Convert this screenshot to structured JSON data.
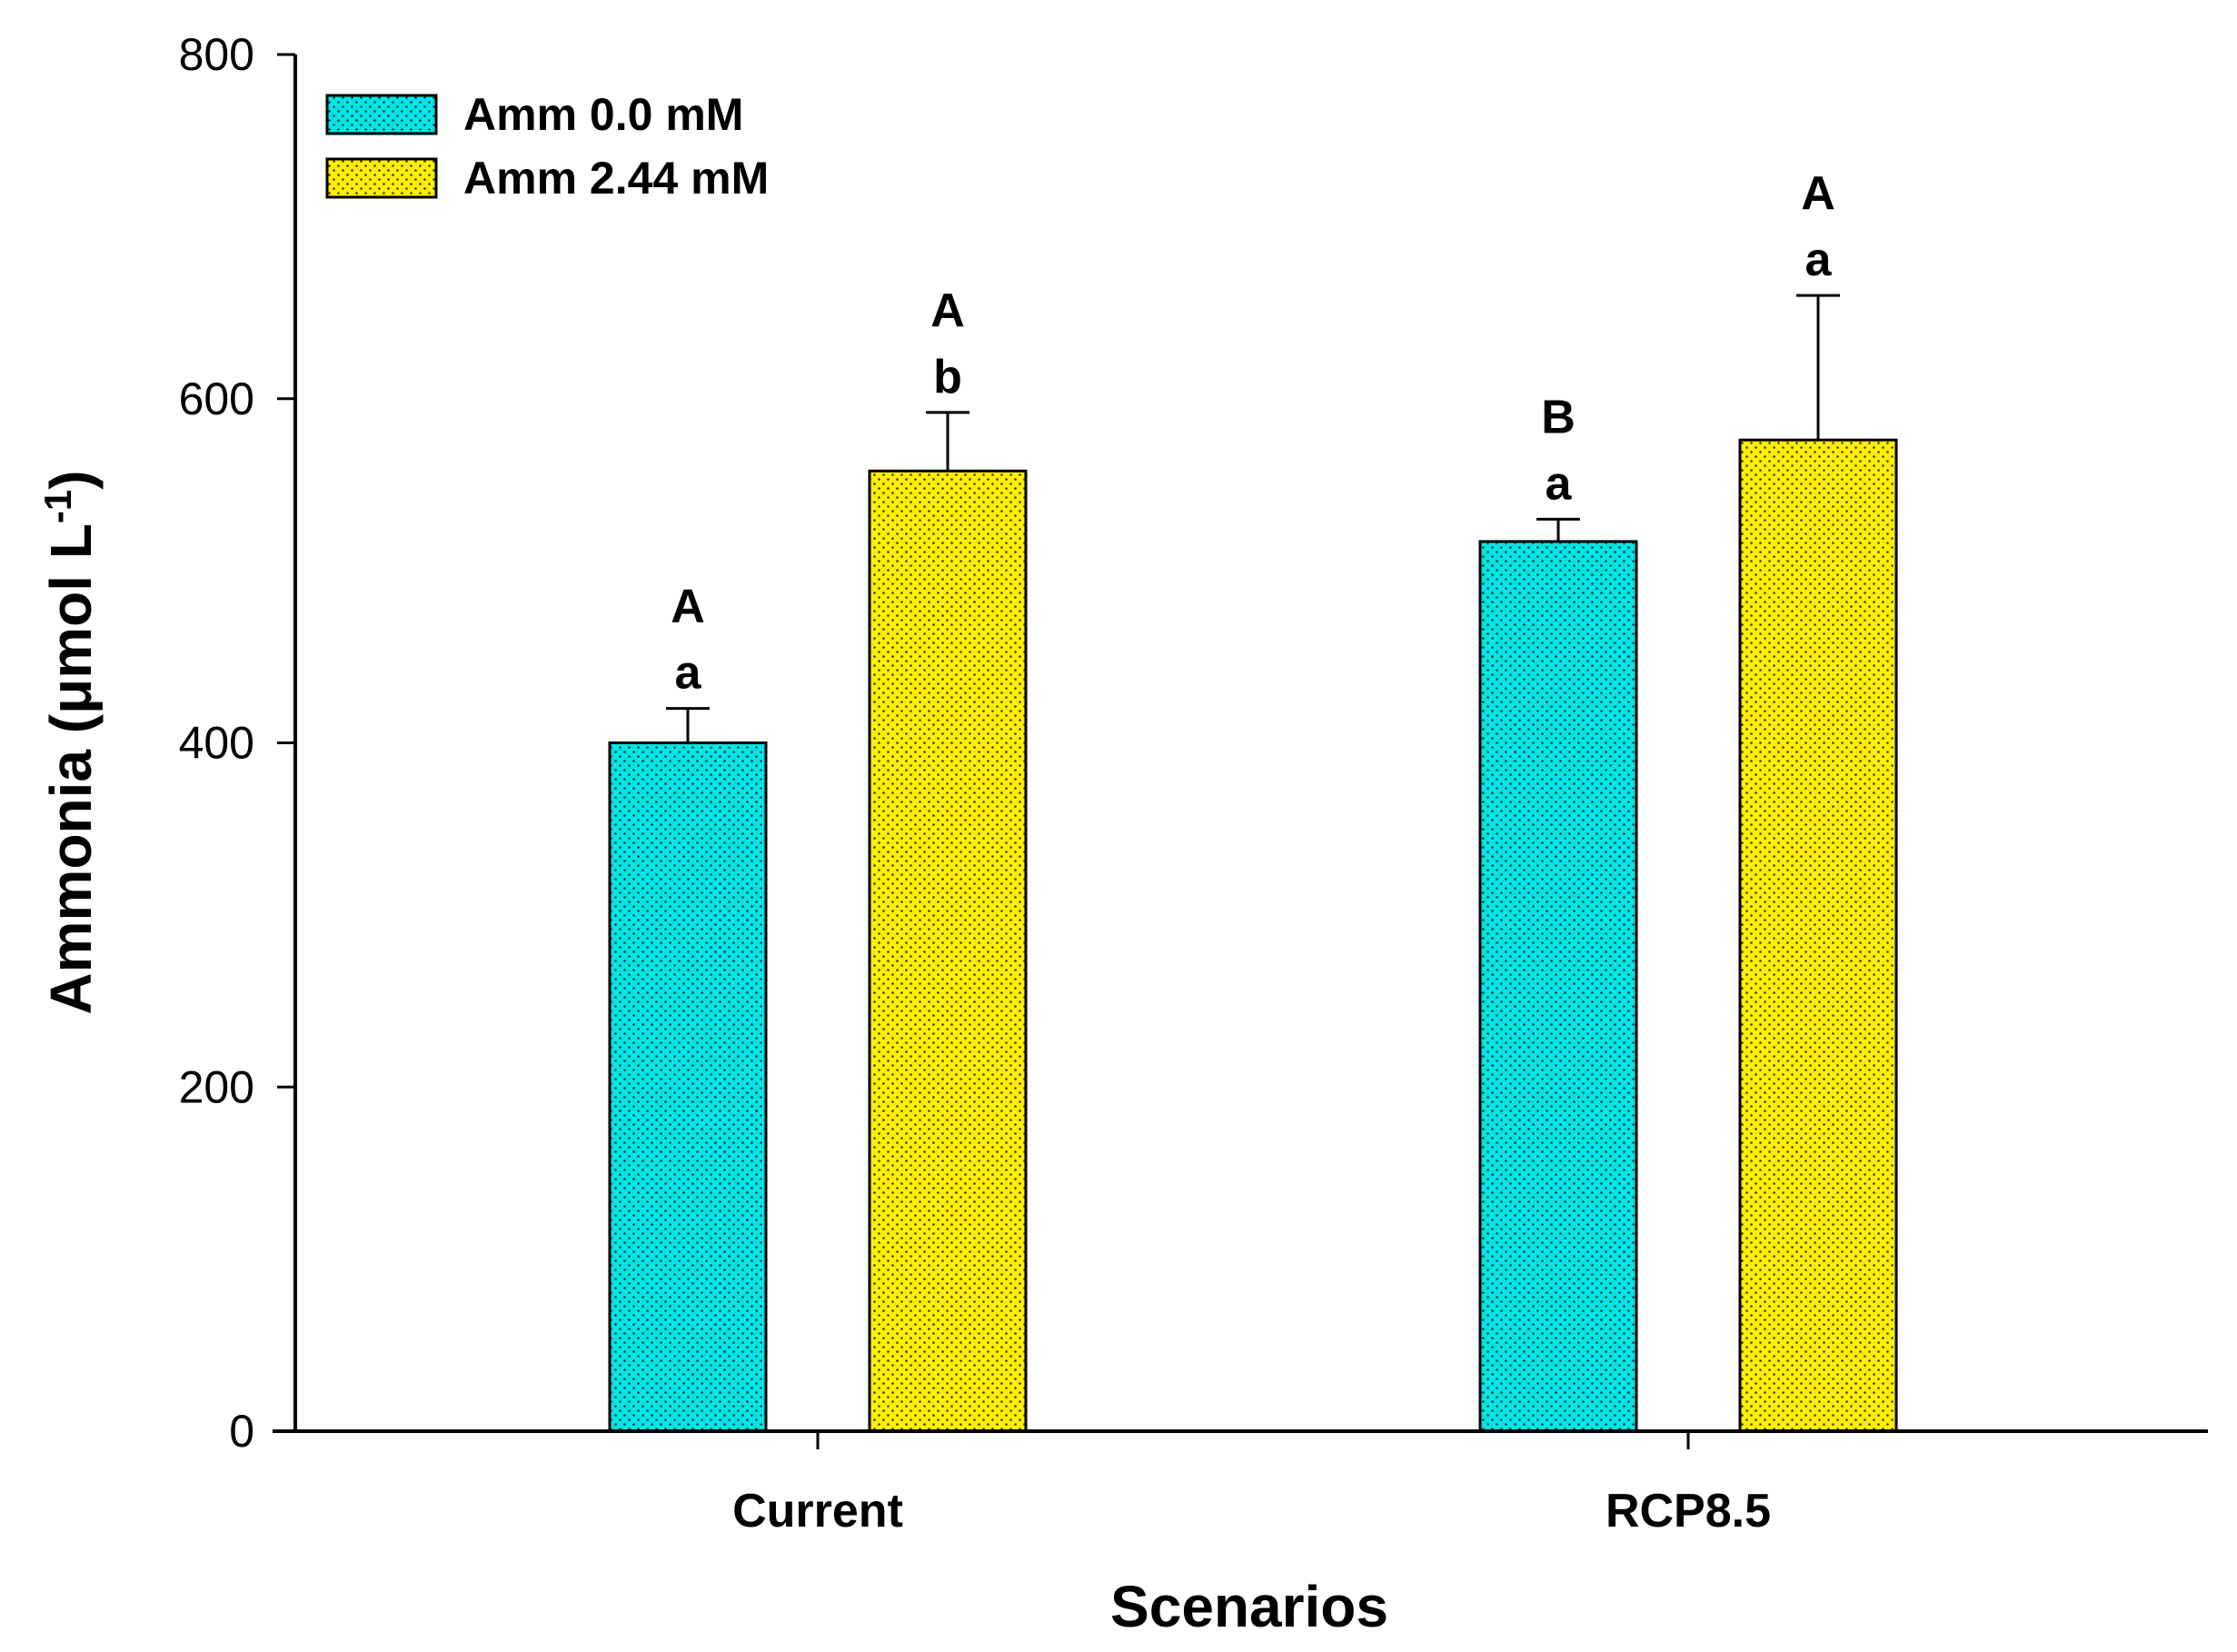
{
  "chart_data": {
    "type": "bar",
    "categories": [
      "Current",
      "RCP8.5"
    ],
    "series": [
      {
        "name": "Amm 0.0 mM",
        "color": "#00e5e5",
        "values": [
          400,
          517
        ],
        "errors": [
          20,
          13
        ],
        "upper_letters": [
          "A",
          "B"
        ],
        "lower_letters": [
          "a",
          "a"
        ]
      },
      {
        "name": "Amm 2.44 mM",
        "color": "#ffee00",
        "values": [
          558,
          576
        ],
        "errors": [
          34,
          84
        ],
        "upper_letters": [
          "A",
          "A"
        ],
        "lower_letters": [
          "b",
          "a"
        ]
      }
    ],
    "title": "",
    "xlabel": "Scenarios",
    "ylabel": "Ammonia (μmol L",
    "ylabel_superscript": "-1",
    "ylabel_close": ")",
    "ylim": [
      0,
      800
    ],
    "yticks": [
      0,
      200,
      400,
      600,
      800
    ],
    "grid": false,
    "legend_position": "top-left"
  }
}
